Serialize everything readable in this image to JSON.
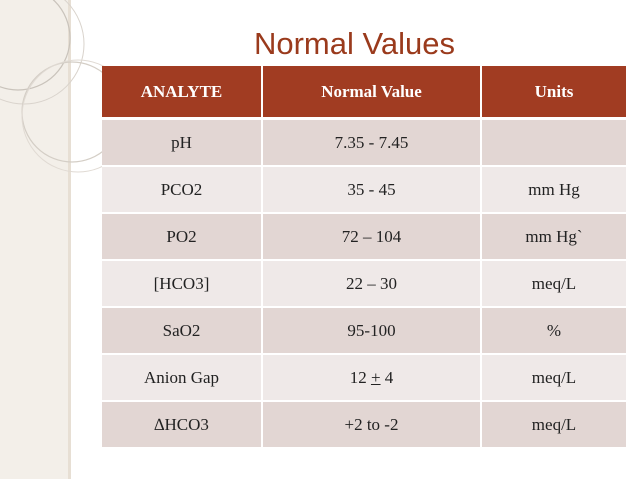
{
  "slide": {
    "title": "Normal Values"
  },
  "table": {
    "headers": [
      "ANALYTE",
      "Normal Value",
      "Units"
    ],
    "rows": [
      {
        "analyte": "pH",
        "value": "7.35 - 7.45",
        "units": ""
      },
      {
        "analyte": "PCO2",
        "value": "35 - 45",
        "units": "mm Hg"
      },
      {
        "analyte": "PO2",
        "value": "72 – 104",
        "units": "mm Hg`"
      },
      {
        "analyte": "[HCO3]",
        "value": "22 – 30",
        "units": "meq/L"
      },
      {
        "analyte": "SaO2",
        "value": "95-100",
        "units": "%"
      },
      {
        "analyte": "Anion Gap",
        "value_prefix": "12 ",
        "value_pm": "+",
        "value_suffix": " 4",
        "units": "meq/L"
      },
      {
        "analyte": "∆HCO3",
        "value": "+2 to -2",
        "units": "meq/L"
      }
    ]
  },
  "colors": {
    "title": "#9a3a1c",
    "header_bg": "#a13c22",
    "row_dark": "#e2d6d3",
    "row_light": "#efe9e8",
    "band": "#f3efe9"
  }
}
